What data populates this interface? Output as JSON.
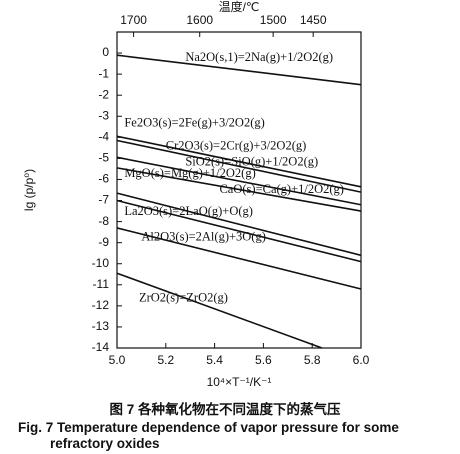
{
  "chart_data": {
    "type": "line",
    "x_label": "10⁴×T⁻¹/K⁻¹",
    "y_label": "lg (p/p⁰)",
    "x2_label": "温度/℃",
    "caption_cn": "图 7   各种氧化物在不同温度下的蒸气压",
    "caption_en": [
      "Fig. 7 Temperature dependence of vapor pressure for some",
      "refractory oxides"
    ],
    "xlim": [
      5.0,
      6.0
    ],
    "xticks": [
      {
        "value": 5.0,
        "label": "5.0"
      },
      5.2,
      5.4,
      5.6,
      5.8,
      {
        "value": 6.0,
        "label": "6.0"
      }
    ],
    "x2ticks": [
      {
        "value": 5.068,
        "label": "1700"
      },
      {
        "value": 5.339,
        "label": "1600"
      },
      {
        "value": 5.64,
        "label": "1500"
      },
      {
        "value": 5.804,
        "label": "1450"
      }
    ],
    "ylim": [
      -14,
      1
    ],
    "yticks": [
      0,
      -1,
      -2,
      -3,
      -4,
      -5,
      -6,
      -7,
      -8,
      -9,
      -10,
      -11,
      -12,
      -13,
      -14
    ],
    "series": [
      {
        "name": "Na2O(s,1)=2Na(g)+1/2O2(g)",
        "color": "#111",
        "x": [
          5.0,
          6.0
        ],
        "values": [
          -0.1,
          -1.5
        ]
      },
      {
        "name": "Fe2O3(s)=2Fe(g)+3/2O2(g)",
        "color": "#111",
        "x": [
          5.0,
          6.0
        ],
        "values": [
          -3.95,
          -6.35
        ]
      },
      {
        "name": "Cr2O3(s)=2Cr(g)+3/2O2(g)",
        "color": "#111",
        "x": [
          5.0,
          6.0
        ],
        "values": [
          -4.15,
          -6.6
        ]
      },
      {
        "name": "SiO2(s)=SiO(g)+1/2O2(g)",
        "color": "#111",
        "x": [
          5.0,
          6.0
        ],
        "values": [
          -4.95,
          -7.2
        ]
      },
      {
        "name": "MgO(s)=Mg(g)+1/2O2(g)",
        "color": "#111",
        "x": [
          5.0,
          6.0
        ],
        "values": [
          -5.45,
          -7.5
        ]
      },
      {
        "name": "CaO(s)=Ca(g)+1/2O2(g)",
        "color": "#111",
        "x": [
          5.0,
          6.0
        ],
        "values": [
          -6.65,
          -9.6
        ]
      },
      {
        "name": "La2O3(s)=2LaO(g)+O(g)",
        "color": "#111",
        "x": [
          5.0,
          6.0
        ],
        "values": [
          -7.0,
          -9.9
        ]
      },
      {
        "name": "Al2O3(s)=2Al(g)+3O(g)",
        "color": "#111",
        "x": [
          5.0,
          6.0
        ],
        "values": [
          -8.3,
          -11.2
        ]
      },
      {
        "name": "ZrO2(s)=ZrO2(g)",
        "color": "#111",
        "x": [
          5.0,
          5.84
        ],
        "values": [
          -10.45,
          -14
        ]
      }
    ]
  }
}
